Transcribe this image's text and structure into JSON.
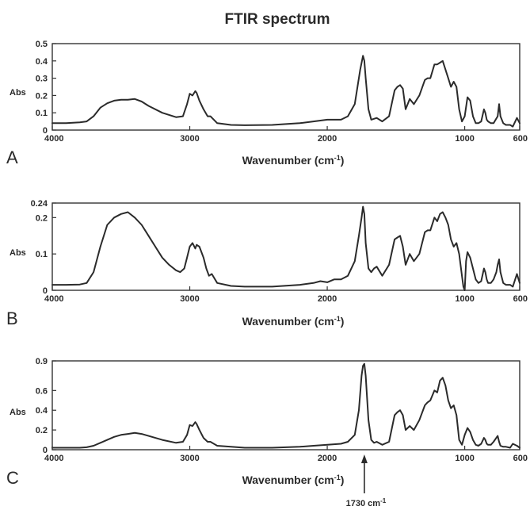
{
  "figure": {
    "title": "FTIR spectrum",
    "annotation": "1730 cm",
    "annotation_sup": "-1",
    "annotation_x": 1730
  },
  "chart_data": [
    {
      "type": "line",
      "panel_letter": "A",
      "title": "",
      "xlabel": "Wavenumber (cm",
      "xlabel_sup": "-1",
      "xlabel_close": ")",
      "ylabel": "Abs",
      "xlim": [
        4000,
        600
      ],
      "ylim": [
        0,
        0.5
      ],
      "x_ticks": [
        4000,
        3000,
        2000,
        1000,
        600
      ],
      "y_ticks": [
        0,
        0.1,
        0.2,
        0.3,
        0.4,
        0.5
      ],
      "y_tick_labels": [
        "0",
        "0.1",
        "0.2",
        "0.3",
        "0.4",
        "0.5"
      ],
      "grid": false,
      "series": [
        {
          "x": [
            4000,
            3900,
            3800,
            3750,
            3700,
            3650,
            3600,
            3550,
            3500,
            3450,
            3400,
            3350,
            3300,
            3200,
            3100,
            3050,
            3020,
            3000,
            2980,
            2960,
            2950,
            2930,
            2900,
            2870,
            2850,
            2800,
            2700,
            2600,
            2400,
            2200,
            2100,
            2050,
            2000,
            1900,
            1850,
            1800,
            1760,
            1740,
            1730,
            1720,
            1700,
            1680,
            1640,
            1600,
            1550,
            1510,
            1490,
            1470,
            1450,
            1430,
            1400,
            1370,
            1330,
            1290,
            1270,
            1250,
            1220,
            1200,
            1180,
            1160,
            1140,
            1120,
            1100,
            1080,
            1060,
            1040,
            1020,
            1000,
            980,
            960,
            940,
            920,
            900,
            880,
            860,
            850,
            840,
            830,
            810,
            790,
            760,
            750,
            740,
            720,
            700,
            670,
            650,
            620,
            600
          ],
          "y": [
            0.04,
            0.04,
            0.045,
            0.05,
            0.08,
            0.13,
            0.155,
            0.17,
            0.175,
            0.175,
            0.18,
            0.165,
            0.14,
            0.1,
            0.075,
            0.08,
            0.15,
            0.21,
            0.2,
            0.225,
            0.215,
            0.17,
            0.12,
            0.08,
            0.08,
            0.04,
            0.03,
            0.028,
            0.03,
            0.04,
            0.05,
            0.055,
            0.06,
            0.06,
            0.08,
            0.15,
            0.35,
            0.43,
            0.4,
            0.3,
            0.12,
            0.06,
            0.07,
            0.05,
            0.08,
            0.23,
            0.25,
            0.26,
            0.24,
            0.12,
            0.18,
            0.15,
            0.2,
            0.29,
            0.3,
            0.3,
            0.38,
            0.38,
            0.39,
            0.4,
            0.35,
            0.3,
            0.25,
            0.28,
            0.25,
            0.12,
            0.05,
            0.08,
            0.19,
            0.17,
            0.08,
            0.04,
            0.04,
            0.05,
            0.12,
            0.1,
            0.06,
            0.05,
            0.04,
            0.04,
            0.08,
            0.15,
            0.08,
            0.04,
            0.03,
            0.03,
            0.02,
            0.07,
            0.04
          ]
        }
      ]
    },
    {
      "type": "line",
      "panel_letter": "B",
      "title": "",
      "xlabel": "Wavenumber (cm",
      "xlabel_sup": "-1",
      "xlabel_close": ")",
      "ylabel": "Abs",
      "xlim": [
        4000,
        600
      ],
      "ylim": [
        0,
        0.24
      ],
      "x_ticks": [
        4000,
        3000,
        2000,
        1000,
        600
      ],
      "y_ticks": [
        0,
        0.1,
        0.2,
        0.24
      ],
      "y_tick_labels": [
        "0",
        "0.1",
        "0.2",
        "0.24"
      ],
      "grid": false,
      "series": [
        {
          "x": [
            4000,
            3900,
            3800,
            3750,
            3700,
            3650,
            3600,
            3550,
            3500,
            3450,
            3400,
            3350,
            3300,
            3250,
            3200,
            3150,
            3100,
            3070,
            3040,
            3020,
            3000,
            2980,
            2960,
            2950,
            2930,
            2900,
            2880,
            2860,
            2840,
            2800,
            2700,
            2600,
            2400,
            2200,
            2100,
            2050,
            2000,
            1950,
            1900,
            1850,
            1800,
            1770,
            1750,
            1740,
            1730,
            1720,
            1700,
            1680,
            1660,
            1640,
            1600,
            1550,
            1510,
            1490,
            1470,
            1450,
            1430,
            1400,
            1370,
            1330,
            1290,
            1270,
            1250,
            1220,
            1200,
            1180,
            1160,
            1140,
            1120,
            1100,
            1080,
            1060,
            1040,
            1020,
            1010,
            1000,
            990,
            980,
            960,
            940,
            920,
            900,
            880,
            860,
            850,
            840,
            830,
            810,
            790,
            770,
            760,
            750,
            740,
            720,
            700,
            670,
            650,
            620,
            600
          ],
          "y": [
            0.015,
            0.015,
            0.016,
            0.02,
            0.05,
            0.12,
            0.18,
            0.2,
            0.21,
            0.215,
            0.2,
            0.18,
            0.15,
            0.12,
            0.09,
            0.07,
            0.055,
            0.05,
            0.06,
            0.09,
            0.12,
            0.13,
            0.115,
            0.125,
            0.12,
            0.09,
            0.06,
            0.04,
            0.045,
            0.02,
            0.012,
            0.01,
            0.01,
            0.015,
            0.02,
            0.025,
            0.022,
            0.03,
            0.03,
            0.04,
            0.08,
            0.15,
            0.2,
            0.23,
            0.21,
            0.13,
            0.06,
            0.05,
            0.06,
            0.065,
            0.04,
            0.07,
            0.14,
            0.145,
            0.15,
            0.12,
            0.07,
            0.1,
            0.08,
            0.1,
            0.16,
            0.165,
            0.165,
            0.2,
            0.19,
            0.21,
            0.215,
            0.2,
            0.18,
            0.14,
            0.12,
            0.13,
            0.1,
            0.04,
            0.01,
            0.0,
            0.08,
            0.105,
            0.09,
            0.06,
            0.03,
            0.02,
            0.025,
            0.06,
            0.05,
            0.03,
            0.02,
            0.02,
            0.03,
            0.05,
            0.07,
            0.085,
            0.05,
            0.02,
            0.015,
            0.015,
            0.01,
            0.045,
            0.02
          ]
        }
      ]
    },
    {
      "type": "line",
      "panel_letter": "C",
      "title": "",
      "xlabel": "Wavenumber (cm",
      "xlabel_sup": "-1",
      "xlabel_close": ")",
      "ylabel": "Abs",
      "xlim": [
        4000,
        600
      ],
      "ylim": [
        0,
        0.9
      ],
      "x_ticks": [
        4000,
        3000,
        2000,
        1000,
        600
      ],
      "y_ticks": [
        0,
        0.2,
        0.4,
        0.6,
        0.9
      ],
      "y_tick_labels": [
        "0",
        "0.2",
        "0.4",
        "0.6",
        "0.9"
      ],
      "grid": false,
      "series": [
        {
          "x": [
            4000,
            3900,
            3800,
            3750,
            3700,
            3650,
            3600,
            3550,
            3500,
            3450,
            3400,
            3350,
            3300,
            3200,
            3100,
            3050,
            3020,
            3000,
            2980,
            2960,
            2950,
            2930,
            2900,
            2870,
            2850,
            2800,
            2700,
            2600,
            2400,
            2200,
            2100,
            2050,
            2000,
            1900,
            1850,
            1800,
            1770,
            1750,
            1740,
            1730,
            1720,
            1700,
            1680,
            1660,
            1640,
            1600,
            1550,
            1510,
            1490,
            1470,
            1450,
            1430,
            1400,
            1370,
            1330,
            1290,
            1270,
            1250,
            1220,
            1200,
            1180,
            1160,
            1140,
            1120,
            1100,
            1080,
            1060,
            1040,
            1020,
            1000,
            980,
            960,
            940,
            920,
            900,
            880,
            860,
            850,
            840,
            830,
            810,
            790,
            760,
            750,
            740,
            720,
            700,
            670,
            650,
            620,
            600
          ],
          "y": [
            0.02,
            0.02,
            0.02,
            0.025,
            0.04,
            0.07,
            0.1,
            0.13,
            0.15,
            0.16,
            0.17,
            0.16,
            0.14,
            0.1,
            0.07,
            0.08,
            0.15,
            0.25,
            0.24,
            0.28,
            0.26,
            0.2,
            0.12,
            0.08,
            0.08,
            0.04,
            0.03,
            0.02,
            0.02,
            0.03,
            0.04,
            0.045,
            0.05,
            0.06,
            0.08,
            0.15,
            0.4,
            0.75,
            0.85,
            0.87,
            0.75,
            0.3,
            0.1,
            0.07,
            0.08,
            0.05,
            0.08,
            0.35,
            0.38,
            0.4,
            0.35,
            0.2,
            0.24,
            0.2,
            0.3,
            0.45,
            0.48,
            0.5,
            0.6,
            0.58,
            0.7,
            0.73,
            0.65,
            0.5,
            0.42,
            0.45,
            0.35,
            0.1,
            0.05,
            0.15,
            0.22,
            0.18,
            0.1,
            0.05,
            0.04,
            0.06,
            0.12,
            0.1,
            0.06,
            0.05,
            0.05,
            0.08,
            0.14,
            0.08,
            0.04,
            0.03,
            0.03,
            0.02,
            0.06,
            0.04,
            0.02
          ]
        }
      ]
    }
  ]
}
